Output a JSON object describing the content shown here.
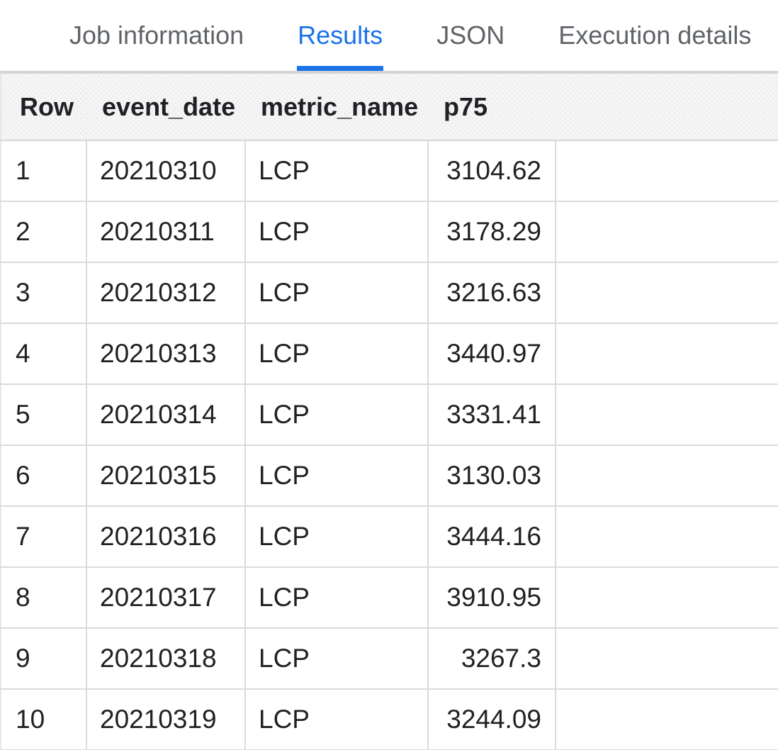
{
  "tabs": {
    "items": [
      {
        "label": "Job information",
        "active": false
      },
      {
        "label": "Results",
        "active": true
      },
      {
        "label": "JSON",
        "active": false
      },
      {
        "label": "Execution details",
        "active": false
      }
    ]
  },
  "table": {
    "columns": [
      "Row",
      "event_date",
      "metric_name",
      "p75"
    ],
    "rows": [
      [
        "1",
        "20210310",
        "LCP",
        "3104.62"
      ],
      [
        "2",
        "20210311",
        "LCP",
        "3178.29"
      ],
      [
        "3",
        "20210312",
        "LCP",
        "3216.63"
      ],
      [
        "4",
        "20210313",
        "LCP",
        "3440.97"
      ],
      [
        "5",
        "20210314",
        "LCP",
        "3331.41"
      ],
      [
        "6",
        "20210315",
        "LCP",
        "3130.03"
      ],
      [
        "7",
        "20210316",
        "LCP",
        "3444.16"
      ],
      [
        "8",
        "20210317",
        "LCP",
        "3910.95"
      ],
      [
        "9",
        "20210318",
        "LCP",
        "3267.3"
      ],
      [
        "10",
        "20210319",
        "LCP",
        "3244.09"
      ]
    ]
  },
  "colors": {
    "active_tab": "#1a73e8",
    "inactive_tab": "#5f6368",
    "text": "#202124",
    "tab_divider": "#d4d4d4",
    "row_border": "#d9dbdc",
    "header_background": "#f5f5f6"
  }
}
